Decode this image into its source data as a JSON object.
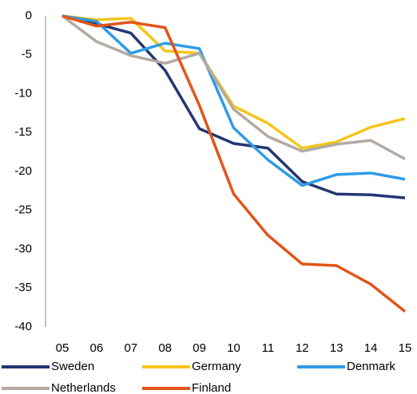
{
  "chart_data": {
    "type": "line",
    "categories": [
      "05",
      "06",
      "07",
      "08",
      "09",
      "10",
      "11",
      "12",
      "13",
      "14",
      "15"
    ],
    "series": [
      {
        "name": "Sweden",
        "color": "#243672",
        "values": [
          0,
          -1,
          -2.2,
          -7,
          -14.5,
          -16.4,
          -17,
          -21.3,
          -22.9,
          -23,
          -23.4
        ]
      },
      {
        "name": "Germany",
        "color": "#f5c518",
        "values": [
          0,
          -0.5,
          -0.3,
          -4.5,
          -4.8,
          -11.6,
          -13.8,
          -17,
          -16.2,
          -14.3,
          -13.2
        ]
      },
      {
        "name": "Denmark",
        "color": "#2e9be6",
        "values": [
          0,
          -0.7,
          -4.8,
          -3.5,
          -4.2,
          -14.4,
          -18.5,
          -21.8,
          -20.4,
          -20.2,
          -21
        ]
      },
      {
        "name": "Netherlands",
        "color": "#b3aaa3",
        "values": [
          0,
          -3.3,
          -5.1,
          -6.1,
          -4.8,
          -12,
          -15.5,
          -17.4,
          -16.5,
          -16,
          -18.4
        ]
      },
      {
        "name": "Finland",
        "color": "#e2541a",
        "values": [
          0,
          -1.3,
          -0.8,
          -1.5,
          -11.5,
          -22.9,
          -28.2,
          -31.9,
          -32.1,
          -34.5,
          -38
        ]
      }
    ],
    "ylim": [
      -40,
      0
    ],
    "yticks": [
      0,
      -5,
      -10,
      -15,
      -20,
      -25,
      -30,
      -35,
      -40
    ],
    "grid": false,
    "legend": "bottom"
  }
}
